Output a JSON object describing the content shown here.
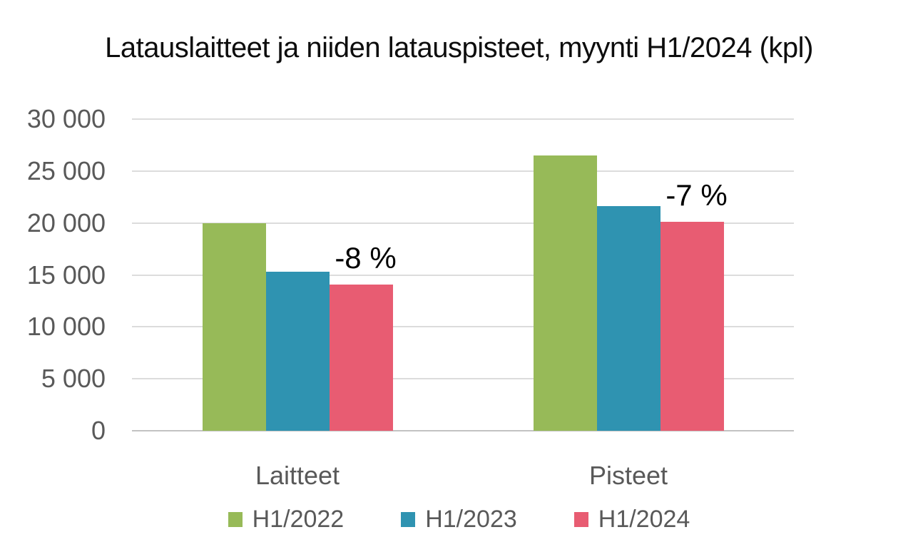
{
  "colors": {
    "series": [
      "#97BA58",
      "#2F93B1",
      "#E85C72"
    ],
    "grid": "#DCDCDC",
    "axis_line": "#C2C2C2",
    "axis_text": "#595959",
    "title_text": "#0D0D0D",
    "annotation_text": "#000000",
    "background": "#FFFFFF"
  },
  "chart_data": {
    "type": "bar",
    "title": "Latauslaitteet ja niiden latauspisteet, myynti H1/2024 (kpl)",
    "categories": [
      "Laitteet",
      "Pisteet"
    ],
    "series": [
      {
        "name": "H1/2022",
        "color": "#97BA58",
        "values": [
          20000,
          26500
        ]
      },
      {
        "name": "H1/2023",
        "color": "#2F93B1",
        "values": [
          15300,
          21600
        ]
      },
      {
        "name": "H1/2024",
        "color": "#E85C72",
        "values": [
          14100,
          20100
        ]
      }
    ],
    "annotations": [
      {
        "text": "-8 %",
        "category_index": 0,
        "series_index": 2
      },
      {
        "text": "-7 %",
        "category_index": 1,
        "series_index": 2
      }
    ],
    "xlabel": "",
    "ylabel": "",
    "ylim": [
      0,
      30000
    ],
    "ytick_step": 5000,
    "ytick_labels": [
      "0",
      "5 000",
      "10 000",
      "15 000",
      "20 000",
      "25 000",
      "30 000"
    ],
    "grid": true,
    "legend_position": "bottom"
  }
}
